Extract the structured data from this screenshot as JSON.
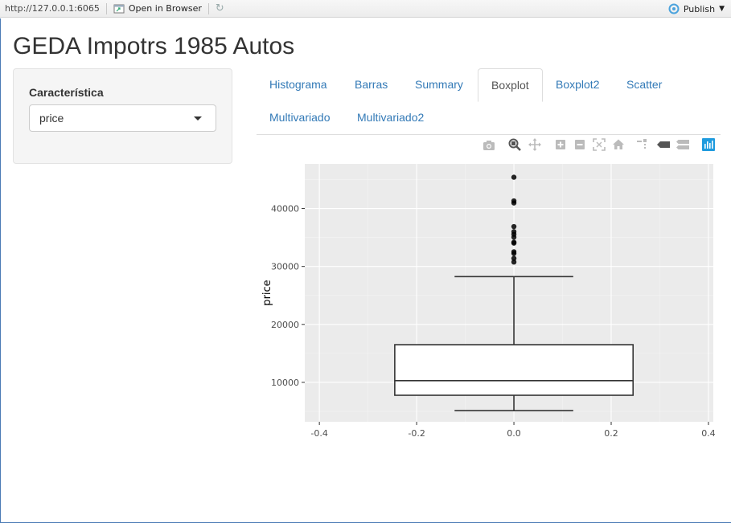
{
  "viewer": {
    "url": "http://127.0.0.1:6065",
    "open_in_browser": "Open in Browser",
    "publish": "Publish"
  },
  "app": {
    "title": "GEDA Impotrs 1985 Autos"
  },
  "sidebar": {
    "label": "Característica",
    "select_value": "price"
  },
  "tabs": [
    {
      "label": "Histograma",
      "active": false
    },
    {
      "label": "Barras",
      "active": false
    },
    {
      "label": "Summary",
      "active": false
    },
    {
      "label": "Boxplot",
      "active": true
    },
    {
      "label": "Boxplot2",
      "active": false
    },
    {
      "label": "Scatter",
      "active": false
    },
    {
      "label": "Multivariado",
      "active": false
    },
    {
      "label": "Multivariado2",
      "active": false
    }
  ],
  "modebar": [
    "camera-icon",
    "zoom-icon",
    "pan-icon",
    "zoom-in-icon",
    "zoom-out-icon",
    "autoscale-icon",
    "reset-axes-icon",
    "spike-lines-icon",
    "hover-closest-icon",
    "hover-compare-icon",
    "plotly-logo-icon"
  ],
  "colors": {
    "link": "#337ab7",
    "panel_bg": "#ebebeb",
    "grid": "#ffffff",
    "modebar_active": "#1f9bde"
  },
  "chart_data": {
    "type": "boxplot",
    "title": "",
    "xlabel": "",
    "ylabel": "price",
    "xlim": [
      -0.43,
      0.41
    ],
    "ylim": [
      3200,
      47700
    ],
    "x_ticks": [
      -0.4,
      -0.2,
      0.0,
      0.2,
      0.4
    ],
    "x_tick_labels": [
      "-0.4",
      "-0.2",
      "0.0",
      "0.2",
      "0.4"
    ],
    "y_ticks": [
      10000,
      20000,
      30000,
      40000
    ],
    "y_tick_labels": [
      "10000",
      "20000",
      "30000",
      "40000"
    ],
    "box": {
      "x": 0.0,
      "half_width": 0.245,
      "whisker_half_width": 0.122,
      "min": 5118,
      "q1": 7775,
      "median": 10295,
      "q3": 16500,
      "max": 28248
    },
    "outliers": [
      30760,
      31400,
      32250,
      32528,
      34028,
      34184,
      35056,
      35550,
      36000,
      36880,
      40960,
      41315,
      45400
    ],
    "grid": true
  }
}
